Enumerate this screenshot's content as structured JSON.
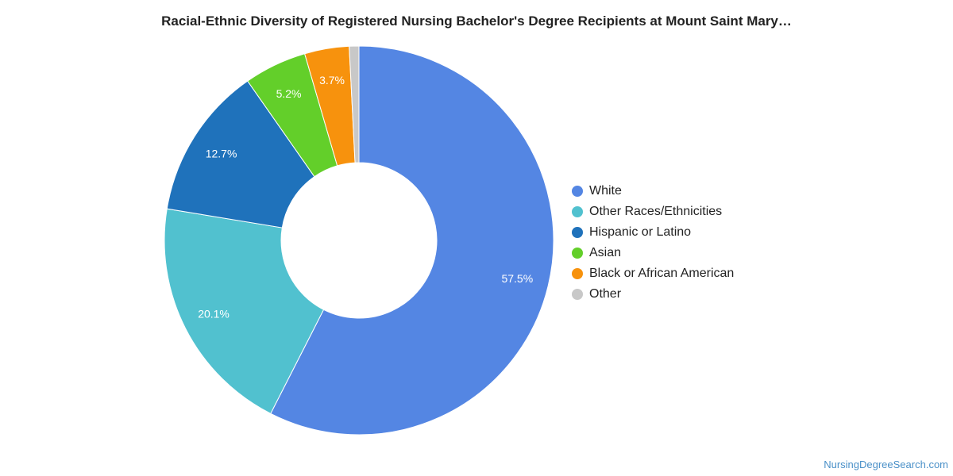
{
  "chart_data": {
    "type": "pie",
    "title": "Racial-Ethnic Diversity of Registered Nursing Bachelor's Degree Recipients at Mount Saint Mary…",
    "slices": [
      {
        "name": "White",
        "value": 57.5,
        "label": "57.5%",
        "color": "#5486e3"
      },
      {
        "name": "Other Races/Ethnicities",
        "value": 20.1,
        "label": "20.1%",
        "color": "#51c1cf"
      },
      {
        "name": "Hispanic or Latino",
        "value": 12.7,
        "label": "12.7%",
        "color": "#1f72bb"
      },
      {
        "name": "Asian",
        "value": 5.2,
        "label": "5.2%",
        "color": "#63cf2a"
      },
      {
        "name": "Black or African American",
        "value": 3.7,
        "label": "3.7%",
        "color": "#f7920d"
      },
      {
        "name": "Other",
        "value": 0.8,
        "label": "",
        "color": "#c8c8c8"
      }
    ],
    "legend_position": "right"
  },
  "footer": {
    "watermark": "NursingDegreeSearch.com"
  }
}
